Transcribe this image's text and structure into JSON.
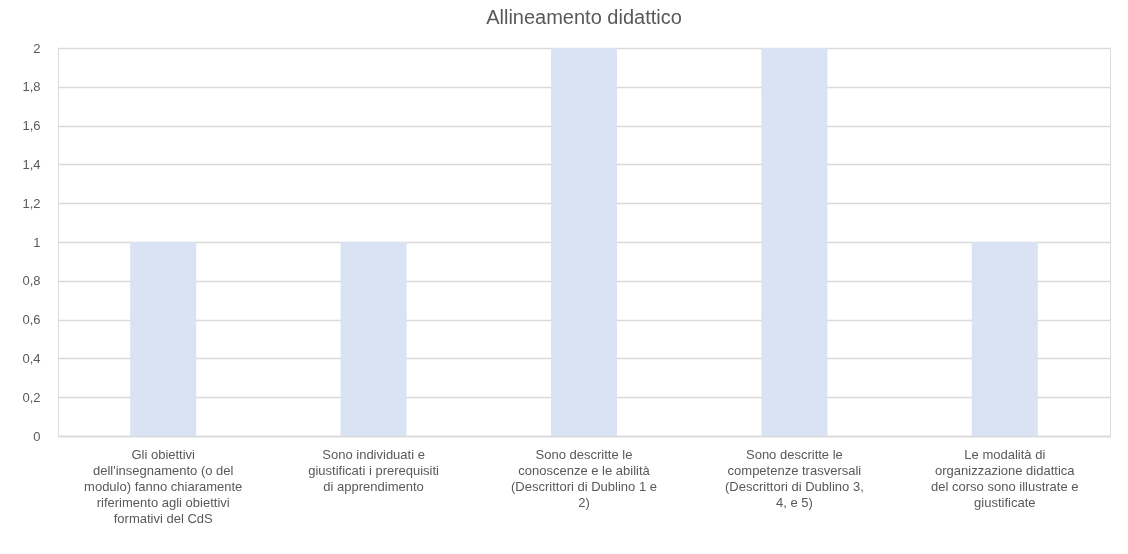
{
  "chart_data": {
    "type": "bar",
    "title": "Allineamento didattico",
    "categories": [
      "Gli obiettivi dell'insegnamento (o del modulo) fanno chiaramente riferimento agli obiettivi formativi del CdS",
      "Sono individuati e giustificati i prerequisiti di apprendimento",
      "Sono descritte le conoscenze e le abilità (Descrittori di Dublino 1 e 2)",
      "Sono descritte le competenze trasversali (Descrittori di Dublino 3, 4, e 5)",
      "Le modalità di organizzazione didattica del corso sono illustrate e giustificate"
    ],
    "values": [
      1,
      1,
      2,
      2,
      1
    ],
    "color": "#dae3f3",
    "ylim": [
      0,
      2
    ],
    "yticks": [
      0,
      {
        "value": 0.2,
        "label": "0,2"
      },
      {
        "value": 0.4,
        "label": "0,4"
      },
      {
        "value": 0.6,
        "label": "0,6"
      },
      {
        "value": 0.8,
        "label": "0,8"
      },
      1,
      {
        "value": 1.2,
        "label": "1,2"
      },
      {
        "value": 1.4,
        "label": "1,4"
      },
      {
        "value": 1.6,
        "label": "1,6"
      },
      {
        "value": 1.8,
        "label": "1,8"
      },
      2
    ],
    "grid": "y"
  }
}
